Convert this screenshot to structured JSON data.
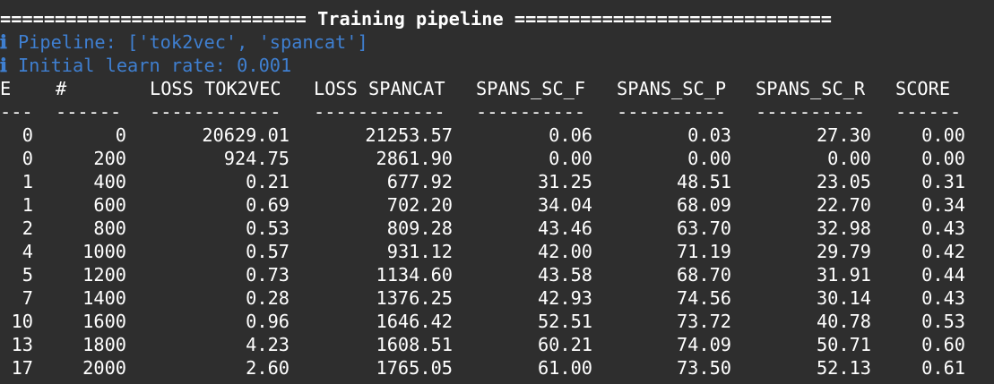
{
  "title_line": "============================ Training pipeline =============================",
  "info": [
    {
      "icon": "ℹ",
      "text": "Pipeline: ['tok2vec', 'spancat']"
    },
    {
      "icon": "ℹ",
      "text": "Initial learn rate: 0.001"
    }
  ],
  "table": {
    "headers": [
      "E",
      "#",
      "LOSS TOK2VEC",
      "LOSS SPANCAT",
      "SPANS_SC_F",
      "SPANS_SC_P",
      "SPANS_SC_R",
      "SCORE"
    ],
    "separators": [
      "---",
      "------",
      "------------",
      "------------",
      "----------",
      "----------",
      "----------",
      "------"
    ],
    "rows": [
      [
        "0",
        "0",
        "20629.01",
        "21253.57",
        "0.06",
        "0.03",
        "27.30",
        "0.00"
      ],
      [
        "0",
        "200",
        "924.75",
        "2861.90",
        "0.00",
        "0.00",
        "0.00",
        "0.00"
      ],
      [
        "1",
        "400",
        "0.21",
        "677.92",
        "31.25",
        "48.51",
        "23.05",
        "0.31"
      ],
      [
        "1",
        "600",
        "0.69",
        "702.20",
        "34.04",
        "68.09",
        "22.70",
        "0.34"
      ],
      [
        "2",
        "800",
        "0.53",
        "809.28",
        "43.46",
        "63.70",
        "32.98",
        "0.43"
      ],
      [
        "4",
        "1000",
        "0.57",
        "931.12",
        "42.00",
        "71.19",
        "29.79",
        "0.42"
      ],
      [
        "5",
        "1200",
        "0.73",
        "1134.60",
        "43.58",
        "68.70",
        "31.91",
        "0.44"
      ],
      [
        "7",
        "1400",
        "0.28",
        "1376.25",
        "42.93",
        "74.56",
        "30.14",
        "0.43"
      ],
      [
        "10",
        "1600",
        "0.96",
        "1646.42",
        "52.51",
        "73.72",
        "40.78",
        "0.53"
      ],
      [
        "13",
        "1800",
        "4.23",
        "1608.51",
        "60.21",
        "74.09",
        "50.71",
        "0.60"
      ],
      [
        "17",
        "2000",
        "2.60",
        "1765.05",
        "61.00",
        "73.50",
        "52.13",
        "0.61"
      ]
    ]
  }
}
